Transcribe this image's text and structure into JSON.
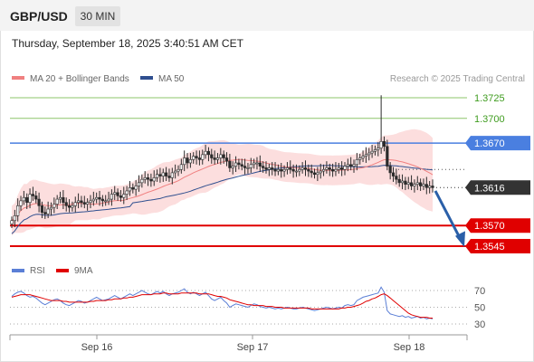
{
  "header": {
    "pair": "GBP/USD",
    "timeframe": "30 MIN",
    "datetime": "Thursday, September 18, 2025 3:40:51 AM CET"
  },
  "legend": {
    "ma20_label": "MA 20 + Bollinger Bands",
    "ma50_label": "MA 50",
    "credit": "Research © 2025 Trading Central"
  },
  "rsi_legend": {
    "rsi_label": "RSI",
    "ma_label": "9MA"
  },
  "colors": {
    "ma20": "#f08080",
    "ma50": "#2f4f8f",
    "bands_fill": "#fbd3d3",
    "candle": "#2b2b2b",
    "resistance": "#8cc56a",
    "pivot": "#4a7fe0",
    "support": "#e00000",
    "current": "#333333",
    "arrow": "#2a5fa8",
    "rsi": "#5b7fd6",
    "rsi_ma": "#e00000"
  },
  "chart_data": [
    {
      "type": "candlestick",
      "x_tick_labels": [
        "Sep 16",
        "Sep 17",
        "Sep 18"
      ],
      "levels": [
        {
          "label": "1.3725",
          "value": 1.3725,
          "role": "resistance"
        },
        {
          "label": "1.3700",
          "value": 1.37,
          "role": "resistance"
        },
        {
          "label": "1.3670",
          "value": 1.367,
          "role": "pivot"
        },
        {
          "label": "1.3616",
          "value": 1.3616,
          "role": "current"
        },
        {
          "label": "1.3570",
          "value": 1.357,
          "role": "support"
        },
        {
          "label": "1.3545",
          "value": 1.3545,
          "role": "support"
        }
      ],
      "y_range": [
        1.3545,
        1.3725
      ],
      "series": [
        {
          "name": "MA 20 + Bollinger Bands"
        },
        {
          "name": "MA 50"
        }
      ],
      "close": [
        1.3576,
        1.3582,
        1.3594,
        1.36,
        1.3604,
        1.3598,
        1.3608,
        1.3606,
        1.3602,
        1.3594,
        1.3586,
        1.3584,
        1.359,
        1.3592,
        1.3596,
        1.3602,
        1.3604,
        1.3598,
        1.3594,
        1.3592,
        1.3594,
        1.3598,
        1.36,
        1.3598,
        1.3596,
        1.3598,
        1.36,
        1.3602,
        1.3604,
        1.3602,
        1.36,
        1.36,
        1.3602,
        1.3608,
        1.361,
        1.3606,
        1.3604,
        1.3608,
        1.3612,
        1.3616,
        1.3614,
        1.3618,
        1.3622,
        1.3626,
        1.3628,
        1.3626,
        1.3624,
        1.3628,
        1.3632,
        1.363,
        1.3634,
        1.363,
        1.3628,
        1.3634,
        1.3636,
        1.3638,
        1.3644,
        1.3652,
        1.3646,
        1.365,
        1.3654,
        1.3652,
        1.365,
        1.3656,
        1.366,
        1.3656,
        1.3652,
        1.365,
        1.3652,
        1.3656,
        1.3652,
        1.3648,
        1.364,
        1.3642,
        1.3646,
        1.3644,
        1.3642,
        1.364,
        1.364,
        1.3644,
        1.3646,
        1.3646,
        1.3642,
        1.364,
        1.3638,
        1.364,
        1.3638,
        1.3636,
        1.3638,
        1.3636,
        1.3638,
        1.364,
        1.3638,
        1.3636,
        1.3636,
        1.3638,
        1.364,
        1.3638,
        1.3636,
        1.3634,
        1.3632,
        1.3634,
        1.3636,
        1.3638,
        1.364,
        1.3638,
        1.3636,
        1.3638,
        1.364,
        1.3638,
        1.3642,
        1.3644,
        1.3642,
        1.3644,
        1.365,
        1.3652,
        1.3654,
        1.3656,
        1.3658,
        1.366,
        1.3662,
        1.3664,
        1.3672,
        1.3666,
        1.3642,
        1.3634,
        1.363,
        1.3626,
        1.3622,
        1.3624,
        1.362,
        1.3622,
        1.3618,
        1.362,
        1.3622,
        1.3618,
        1.362,
        1.3616,
        1.3618,
        1.3616
      ],
      "high_point": 1.3728
    },
    {
      "type": "line",
      "title": "",
      "y_ticks": [
        70,
        50,
        30
      ],
      "y_range": [
        25,
        80
      ],
      "series": [
        {
          "name": "RSI"
        },
        {
          "name": "9MA"
        }
      ],
      "rsi": [
        63,
        66,
        68,
        69,
        67,
        64,
        62,
        63,
        61,
        58,
        55,
        53,
        55,
        57,
        59,
        60,
        58,
        55,
        53,
        52,
        54,
        56,
        58,
        57,
        55,
        56,
        58,
        60,
        62,
        60,
        58,
        59,
        60,
        62,
        64,
        62,
        60,
        62,
        64,
        66,
        64,
        66,
        68,
        70,
        68,
        66,
        65,
        67,
        69,
        67,
        69,
        66,
        64,
        66,
        67,
        68,
        70,
        72,
        68,
        66,
        68,
        66,
        64,
        66,
        68,
        64,
        60,
        58,
        60,
        62,
        58,
        55,
        50,
        52,
        54,
        53,
        52,
        51,
        50,
        52,
        54,
        53,
        51,
        50,
        49,
        50,
        49,
        48,
        49,
        48,
        49,
        50,
        49,
        48,
        48,
        49,
        50,
        49,
        48,
        47,
        46,
        47,
        48,
        49,
        50,
        49,
        48,
        49,
        50,
        49,
        52,
        53,
        52,
        53,
        58,
        60,
        62,
        63,
        64,
        65,
        66,
        67,
        74,
        68,
        46,
        42,
        41,
        40,
        39,
        40,
        38,
        39,
        37,
        38,
        39,
        37,
        38,
        36,
        37,
        36
      ],
      "rsi_ma": [
        62,
        63,
        64,
        65,
        65,
        65,
        65,
        64,
        63,
        62,
        61,
        60,
        59,
        58,
        58,
        58,
        58,
        57,
        57,
        56,
        56,
        56,
        56,
        56,
        56,
        56,
        57,
        57,
        58,
        58,
        58,
        58,
        59,
        59,
        60,
        60,
        60,
        61,
        61,
        62,
        62,
        63,
        64,
        65,
        65,
        65,
        65,
        66,
        66,
        66,
        67,
        67,
        66,
        66,
        66,
        66,
        67,
        67,
        67,
        67,
        67,
        67,
        66,
        66,
        66,
        66,
        65,
        64,
        63,
        63,
        62,
        61,
        59,
        58,
        57,
        56,
        55,
        54,
        53,
        53,
        52,
        52,
        52,
        52,
        51,
        51,
        51,
        50,
        50,
        50,
        49,
        49,
        49,
        49,
        49,
        49,
        49,
        49,
        49,
        48,
        48,
        48,
        48,
        48,
        48,
        48,
        48,
        48,
        48,
        49,
        49,
        50,
        50,
        51,
        52,
        53,
        55,
        57,
        58,
        60,
        61,
        63,
        65,
        66,
        64,
        61,
        58,
        55,
        52,
        49,
        46,
        43,
        41,
        40,
        39,
        38,
        38,
        38,
        37,
        37
      ]
    }
  ]
}
